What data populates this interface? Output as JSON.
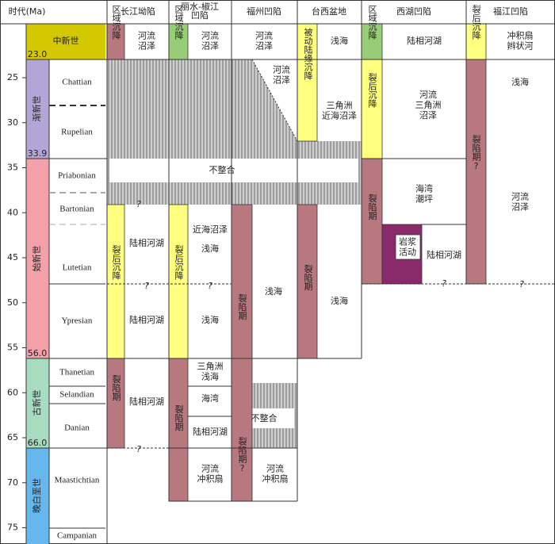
{
  "header": {
    "time": "时代(Ma)"
  },
  "age_ticks": [
    25,
    30,
    35,
    40,
    45,
    50,
    55,
    60,
    65,
    70,
    75
  ],
  "epochs": [
    {
      "name": "中新世",
      "boundary": "23.0"
    },
    {
      "name": "渐新世",
      "boundary": "33.9"
    },
    {
      "name": "始新世",
      "boundary": "56.0"
    },
    {
      "name": "古新世",
      "boundary": "66.0"
    },
    {
      "name": "晚白垩世"
    }
  ],
  "stages": [
    "Chattian",
    "Rupelian",
    "Priabonian",
    "Bartonian",
    "Lutetian",
    "Ypresian",
    "Thanetian",
    "Selandian",
    "Danian",
    "Maastichtian",
    "Campanian"
  ],
  "basins": [
    {
      "name": [
        "长江坳陷"
      ],
      "tectonic": [
        "区域沉降",
        "裂后沉降",
        "裂陷期"
      ],
      "facies": [
        [
          "河流",
          "沼泽"
        ],
        [
          "陆相河湖"
        ],
        [
          "陆相河湖"
        ],
        [
          "陆相河湖"
        ]
      ]
    },
    {
      "name": [
        "丽水-椒江",
        "凹陷"
      ],
      "tectonic": [
        "区域沉降",
        "裂后沉降",
        "裂陷期"
      ],
      "facies": [
        [
          "河流",
          "沼泽"
        ],
        [
          "近海沼泽"
        ],
        [
          "浅海"
        ],
        [
          "浅海"
        ],
        [
          "三角洲",
          "浅海"
        ],
        [
          "海湾"
        ],
        [
          "陆相河湖"
        ],
        [
          "河流",
          "冲积扇"
        ]
      ]
    },
    {
      "name": [
        "福州凹陷"
      ],
      "tectonic": [
        "裂陷期",
        "裂陷期?"
      ],
      "facies": [
        [
          "河流",
          "沼泽"
        ],
        [
          "河流",
          "沼泽"
        ],
        [
          "浅海"
        ],
        [
          "河流",
          "冲积扇"
        ]
      ]
    },
    {
      "name": [
        "台西盆地"
      ],
      "tectonic": [
        "被动陆缘沉降",
        "裂陷期"
      ],
      "facies": [
        [
          "浅海"
        ],
        [
          "三角洲",
          "近海沼泽"
        ],
        [
          "浅海"
        ]
      ]
    },
    {
      "name": [
        "西湖凹陷"
      ],
      "tectonic": [
        "区域沉降",
        "裂后沉降",
        "裂陷期"
      ],
      "facies": [
        [
          "陆相河湖"
        ],
        [
          "河流",
          "三角洲",
          "沼泽"
        ],
        [
          "海湾",
          "潮坪"
        ],
        [
          "岩浆",
          "活动"
        ],
        [
          "陆相河湖"
        ]
      ]
    },
    {
      "name": [
        "福江凹陷"
      ],
      "tectonic": [
        "裂后沉降",
        "裂陷期?"
      ],
      "facies": [
        [
          "冲积扇",
          "辫状河"
        ],
        [
          "浅海"
        ],
        [
          "河流",
          "沼泽"
        ]
      ]
    }
  ],
  "unconformity": "不整合",
  "uncertain": "?"
}
